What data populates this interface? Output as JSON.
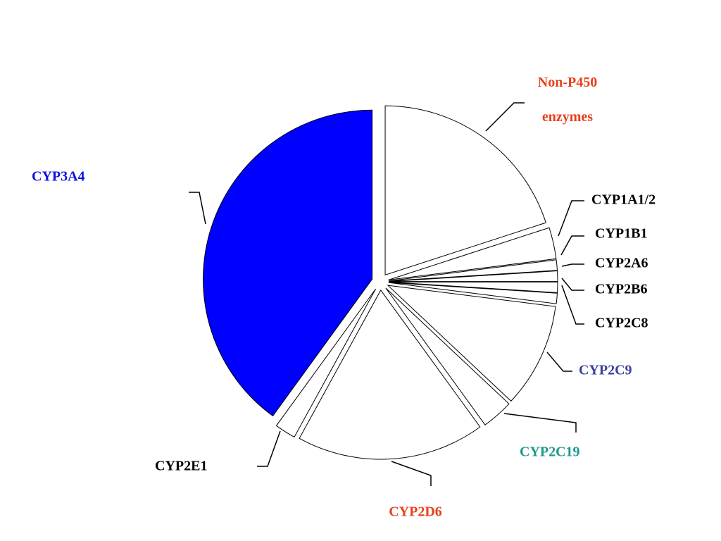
{
  "chart_data": {
    "type": "pie",
    "categories": [
      "Non-P450 enzymes",
      "CYP1A1/2",
      "CYP1B1",
      "CYP2A6",
      "CYP2B6",
      "CYP2C8",
      "CYP2C9",
      "CYP2C19",
      "CYP2D6",
      "CYP2E1",
      "CYP3A4"
    ],
    "values": [
      20,
      3,
      1,
      1,
      1,
      1,
      10,
      3,
      18,
      2,
      40
    ],
    "colors": [
      "#ffffff",
      "#ffffff",
      "#ffffff",
      "#ffffff",
      "#ffffff",
      "#ffffff",
      "#ffffff",
      "#ffffff",
      "#ffffff",
      "#ffffff",
      "#0000ff"
    ],
    "label_colors": [
      "#e8401c",
      "#000000",
      "#000000",
      "#000000",
      "#000000",
      "#000000",
      "#3a3f9a",
      "#1a9a8a",
      "#e8401c",
      "#000000",
      "#1010e0"
    ]
  }
}
